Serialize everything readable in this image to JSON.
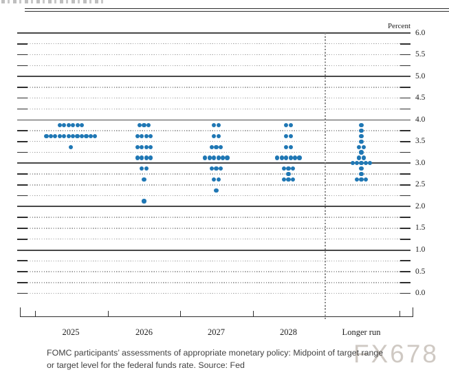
{
  "chart_data": {
    "type": "scatter",
    "subtype": "fomc-dot-plot",
    "unit_label": "Percent",
    "ylim": [
      0.0,
      6.0
    ],
    "y_grid_step": 0.25,
    "solid_line_values": [
      6,
      5,
      4,
      3,
      2,
      1
    ],
    "y_tick_labels": [
      {
        "v": 6.0,
        "t": "6.0"
      },
      {
        "v": 5.5,
        "t": "5.5"
      },
      {
        "v": 5.0,
        "t": "5.0"
      },
      {
        "v": 4.5,
        "t": "4.5"
      },
      {
        "v": 4.0,
        "t": "4.0"
      },
      {
        "v": 3.5,
        "t": "3.5"
      },
      {
        "v": 3.0,
        "t": "3.0"
      },
      {
        "v": 2.5,
        "t": "2.5"
      },
      {
        "v": 2.0,
        "t": "2.0"
      },
      {
        "v": 1.5,
        "t": "1.5"
      },
      {
        "v": 1.0,
        "t": "1.0"
      },
      {
        "v": 0.5,
        "t": "0.5"
      },
      {
        "v": 0.0,
        "t": "0.0"
      }
    ],
    "categories": [
      "2025",
      "2026",
      "2027",
      "2028",
      "Longer run"
    ],
    "separator_before_category": "Longer run",
    "dot_color": "#1f77b4",
    "series": [
      {
        "category": "2025",
        "dots": [
          {
            "rate": 3.875,
            "count": 6
          },
          {
            "rate": 3.625,
            "count": 12
          },
          {
            "rate": 3.375,
            "count": 1
          }
        ]
      },
      {
        "category": "2026",
        "dots": [
          {
            "rate": 3.875,
            "count": 3
          },
          {
            "rate": 3.625,
            "count": 4
          },
          {
            "rate": 3.375,
            "count": 4
          },
          {
            "rate": 3.125,
            "count": 4
          },
          {
            "rate": 2.875,
            "count": 2
          },
          {
            "rate": 2.625,
            "count": 1
          },
          {
            "rate": 2.125,
            "count": 1
          }
        ]
      },
      {
        "category": "2027",
        "dots": [
          {
            "rate": 3.875,
            "count": 2
          },
          {
            "rate": 3.625,
            "count": 2
          },
          {
            "rate": 3.375,
            "count": 3
          },
          {
            "rate": 3.125,
            "count": 6
          },
          {
            "rate": 2.875,
            "count": 3
          },
          {
            "rate": 2.625,
            "count": 2
          },
          {
            "rate": 2.375,
            "count": 1
          }
        ]
      },
      {
        "category": "2028",
        "dots": [
          {
            "rate": 3.875,
            "count": 2
          },
          {
            "rate": 3.625,
            "count": 2
          },
          {
            "rate": 3.375,
            "count": 2
          },
          {
            "rate": 3.125,
            "count": 6
          },
          {
            "rate": 2.875,
            "count": 3
          },
          {
            "rate": 2.75,
            "count": 1
          },
          {
            "rate": 2.625,
            "count": 3
          }
        ]
      },
      {
        "category": "Longer run",
        "dots": [
          {
            "rate": 3.875,
            "count": 1
          },
          {
            "rate": 3.75,
            "count": 1
          },
          {
            "rate": 3.625,
            "count": 1
          },
          {
            "rate": 3.5,
            "count": 1
          },
          {
            "rate": 3.375,
            "count": 2
          },
          {
            "rate": 3.25,
            "count": 1
          },
          {
            "rate": 3.125,
            "count": 2
          },
          {
            "rate": 3.0,
            "count": 5
          },
          {
            "rate": 2.875,
            "count": 1
          },
          {
            "rate": 2.75,
            "count": 1
          },
          {
            "rate": 2.625,
            "count": 3
          }
        ]
      }
    ]
  },
  "caption": {
    "line1": "FOMC participants’ assessments of appropriate monetary policy: Midpoint of target range",
    "line2": "or target level for the federal funds rate. Source: Fed"
  },
  "watermark": {
    "text": "FX678"
  }
}
